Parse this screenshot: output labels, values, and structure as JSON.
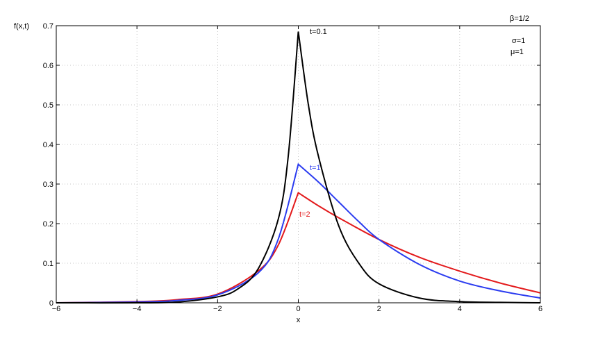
{
  "chart_data": {
    "type": "line",
    "title": "",
    "xlabel": "x",
    "ylabel": "f(x,t)",
    "xlim": [
      -6,
      6
    ],
    "ylim": [
      0,
      0.7
    ],
    "grid": true,
    "xticks": [
      -6,
      -4,
      -2,
      0,
      2,
      4,
      6
    ],
    "xtick_labels": [
      "−6",
      "−4",
      "−2",
      "0",
      "2",
      "4",
      "6"
    ],
    "yticks": [
      0,
      0.1,
      0.2,
      0.3,
      0.4,
      0.5,
      0.6,
      0.7
    ],
    "ytick_labels": [
      "0",
      "0.1",
      "0.2",
      "0.3",
      "0.4",
      "0.5",
      "0.6",
      "0.7"
    ],
    "parameters": [
      "β=1/2",
      "σ=1",
      "μ=1"
    ],
    "series": [
      {
        "name": "t=0.1",
        "color": "#000000",
        "x": [
          -6,
          -4,
          -3,
          -2,
          -1.5,
          -1,
          -0.5,
          -0.25,
          0,
          0.25,
          0.5,
          1,
          1.5,
          2,
          3,
          4,
          5,
          6
        ],
        "y": [
          0.0,
          0.0,
          0.002,
          0.015,
          0.035,
          0.085,
          0.21,
          0.37,
          0.685,
          0.5,
          0.37,
          0.195,
          0.1,
          0.048,
          0.012,
          0.003,
          0.001,
          0.0
        ]
      },
      {
        "name": "t=1",
        "color": "#2b3cf0",
        "x": [
          -6,
          -4,
          -3,
          -2,
          -1,
          -0.5,
          0,
          0.5,
          1,
          1.5,
          2,
          3,
          4,
          5,
          6
        ],
        "y": [
          0.0,
          0.002,
          0.006,
          0.02,
          0.075,
          0.16,
          0.35,
          0.305,
          0.255,
          0.205,
          0.16,
          0.097,
          0.055,
          0.03,
          0.012
        ]
      },
      {
        "name": "t=2",
        "color": "#e31a1c",
        "x": [
          -6,
          -4,
          -3,
          -2,
          -1,
          -0.5,
          0,
          0.5,
          1,
          2,
          3,
          4,
          5,
          6
        ],
        "y": [
          0.0,
          0.003,
          0.008,
          0.022,
          0.08,
          0.145,
          0.278,
          0.245,
          0.215,
          0.16,
          0.115,
          0.08,
          0.05,
          0.025
        ]
      }
    ]
  }
}
